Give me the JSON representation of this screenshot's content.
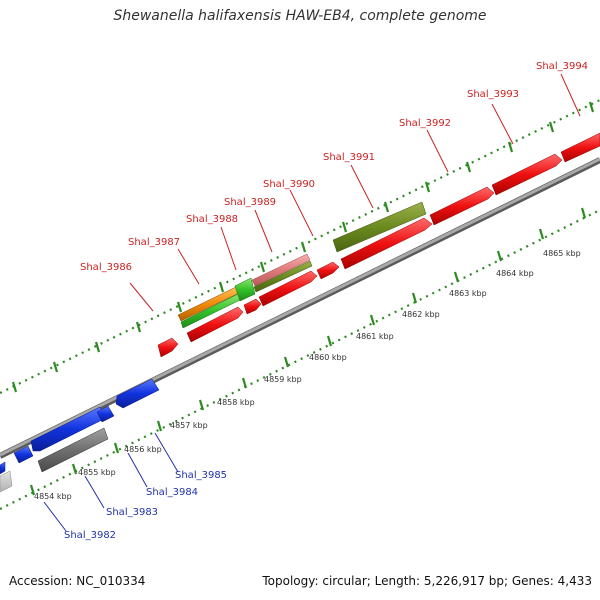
{
  "title": "Shewanella halifaxensis HAW-EB4, complete genome",
  "footer": {
    "accession": "Accession: NC_010334",
    "summary": "Topology: circular; Length: 5,226,917 bp; Genes: 4,433"
  },
  "colors": {
    "forward_gene": "#ee1111",
    "reverse_gene": "#1133dd",
    "backbone": "#9a9a9a",
    "dots": "#2e8b22",
    "label_forward": "#cc2222",
    "label_reverse": "#2233aa"
  },
  "scale_labels": [
    "4854 kbp",
    "4855 kbp",
    "4856 kbp",
    "4857 kbp",
    "4858 kbp",
    "4859 kbp",
    "4860 kbp",
    "4861 kbp",
    "4862 kbp",
    "4863 kbp",
    "4864 kbp",
    "4865 kbp"
  ],
  "gene_labels_forward": [
    "Shal_3986",
    "Shal_3987",
    "Shal_3988",
    "Shal_3989",
    "Shal_3990",
    "Shal_3991",
    "Shal_3992",
    "Shal_3993",
    "Shal_3994"
  ],
  "gene_labels_reverse": [
    "Shal_3982",
    "Shal_3983",
    "Shal_3984",
    "Shal_3985"
  ]
}
